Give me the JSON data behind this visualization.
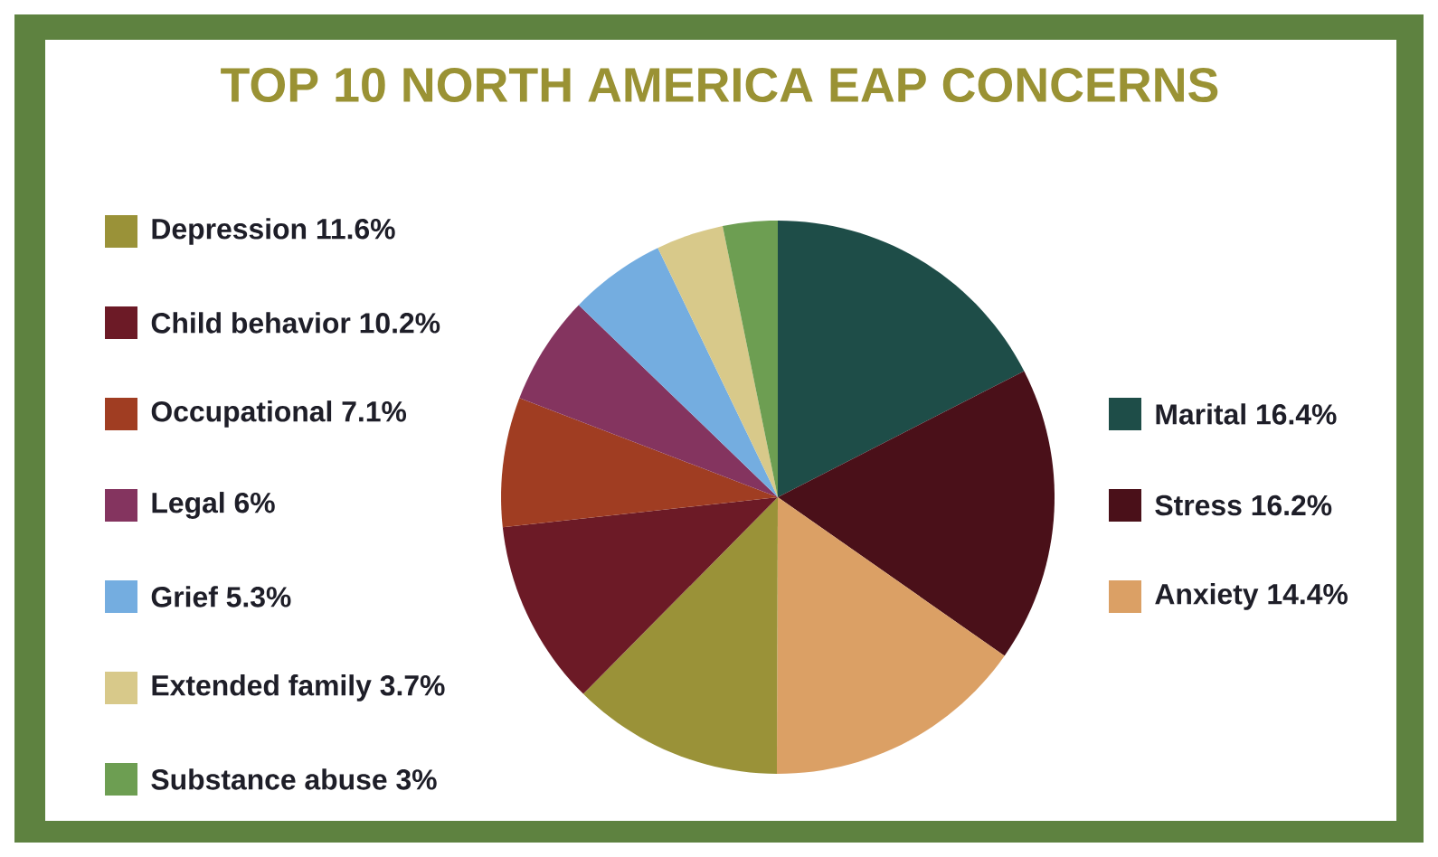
{
  "chart_data": {
    "type": "pie",
    "title": "TOP 10 NORTH AMERICA EAP CONCERNS",
    "categories": [
      "Marital",
      "Stress",
      "Anxiety",
      "Depression",
      "Child behavior",
      "Occupational",
      "Legal",
      "Grief",
      "Extended family",
      "Substance abuse"
    ],
    "values": [
      16.4,
      16.2,
      14.4,
      11.6,
      10.2,
      7.1,
      6,
      5.3,
      3.7,
      3
    ],
    "value_labels": [
      "16.4%",
      "16.2%",
      "14.4%",
      "11.6%",
      "10.2%",
      "7.1%",
      "6%",
      "5.3%",
      "3.7%",
      "3%"
    ],
    "colors": [
      "#1e4d48",
      "#4a1019",
      "#dba065",
      "#9a9238",
      "#6c1a26",
      "#a03d22",
      "#84345f",
      "#74ade0",
      "#d8c98a",
      "#6d9e52"
    ],
    "legend": "left"
  }
}
